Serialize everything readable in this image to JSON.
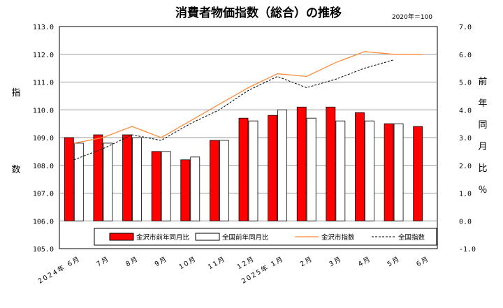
{
  "title": "消費者物価指数（総合）の推移",
  "base_note": "2020年＝100",
  "chart_data": {
    "type": "bar",
    "categories": [
      "2024年 6月",
      "7月",
      "8月",
      "9月",
      "10月",
      "11月",
      "12月",
      "2025年 1月",
      "2月",
      "3月",
      "4月",
      "5月",
      "6月"
    ],
    "series": [
      {
        "name": "金沢市前年同月比",
        "type": "bar",
        "axis": "right",
        "color": "#ff0000",
        "values": [
          3.0,
          3.1,
          3.1,
          2.5,
          2.2,
          2.9,
          3.7,
          3.8,
          4.1,
          4.1,
          3.9,
          3.5,
          3.4
        ]
      },
      {
        "name": "全国前年同月比",
        "type": "bar",
        "axis": "right",
        "color": "#ffffff",
        "values": [
          2.8,
          2.8,
          3.0,
          2.5,
          2.3,
          2.9,
          3.6,
          4.0,
          3.7,
          3.6,
          3.6,
          3.5,
          null
        ]
      },
      {
        "name": "金沢市指数",
        "type": "line",
        "axis": "left",
        "color": "#ff8c3c",
        "values": [
          108.8,
          109.0,
          109.4,
          109.0,
          109.6,
          110.2,
          110.8,
          111.3,
          111.2,
          111.7,
          112.1,
          112.0,
          112.0
        ]
      },
      {
        "name": "全国指数",
        "type": "line",
        "axis": "left",
        "color": "#000000",
        "dashed": true,
        "values": [
          108.2,
          108.6,
          109.1,
          108.9,
          109.5,
          110.0,
          110.7,
          111.2,
          110.8,
          111.1,
          111.5,
          111.8,
          null
        ]
      }
    ],
    "left_axis": {
      "label": "指数",
      "min": 105.0,
      "max": 113.0,
      "step": 1.0,
      "ticks": [
        "105.0",
        "106.0",
        "107.0",
        "108.0",
        "109.0",
        "110.0",
        "111.0",
        "112.0",
        "113.0"
      ]
    },
    "right_axis": {
      "label": "前年同月比％",
      "min": -1.0,
      "max": 7.0,
      "step": 1.0,
      "ticks": [
        "-1.0",
        "0.0",
        "1.0",
        "2.0",
        "3.0",
        "4.0",
        "5.0",
        "6.0",
        "7.0"
      ]
    },
    "grid": true,
    "legend_position": "bottom-inside"
  }
}
